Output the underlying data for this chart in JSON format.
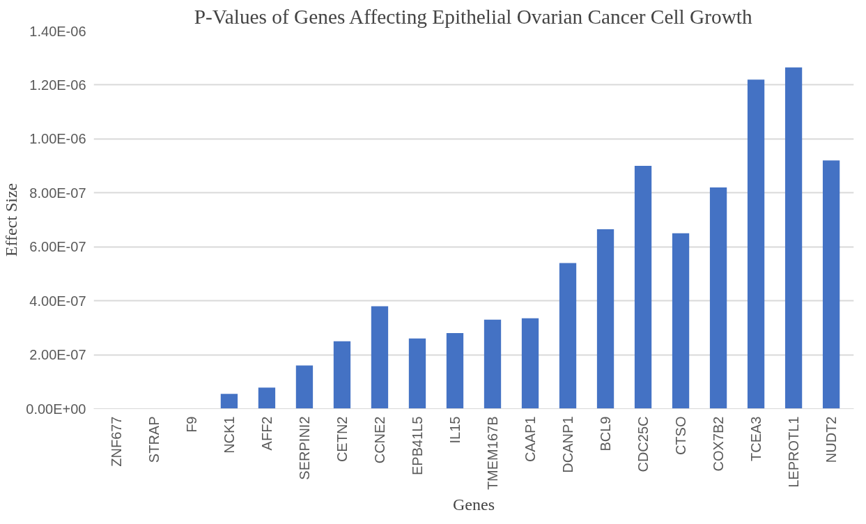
{
  "chart_data": {
    "type": "bar",
    "title": "P-Values of Genes Affecting Epithelial Ovarian Cancer Cell Growth",
    "xlabel": "Genes",
    "ylabel": "Effect Size",
    "categories": [
      "ZNF677",
      "STRAP",
      "F9",
      "NCK1",
      "AFF2",
      "SERPINI2",
      "CETN2",
      "CCNE2",
      "EPB41L5",
      "IL15",
      "TMEM167B",
      "CAAP1",
      "DCANP1",
      "BCL9",
      "CDC25C",
      "CTSO",
      "COX7B2",
      "TCEA3",
      "LEPROTL1",
      "NUDT2"
    ],
    "values": [
      0,
      0,
      0,
      5.5e-08,
      7.8e-08,
      1.6e-07,
      2.5e-07,
      3.8e-07,
      2.6e-07,
      2.8e-07,
      3.3e-07,
      3.35e-07,
      5.4e-07,
      6.65e-07,
      9e-07,
      6.5e-07,
      8.2e-07,
      1.22e-06,
      1.265e-06,
      9.2e-07
    ],
    "color": "#4472c4",
    "ylim": [
      0,
      1.4e-06
    ],
    "yticks": [
      {
        "value": 0,
        "label": "0.00E+00"
      },
      {
        "value": 2e-07,
        "label": "2.00E-07"
      },
      {
        "value": 4e-07,
        "label": "4.00E-07"
      },
      {
        "value": 6e-07,
        "label": "6.00E-07"
      },
      {
        "value": 8e-07,
        "label": "8.00E-07"
      },
      {
        "value": 1e-06,
        "label": "1.00E-06"
      },
      {
        "value": 1.2e-06,
        "label": "1.20E-06"
      },
      {
        "value": 1.4e-06,
        "label": "1.40E-06"
      }
    ],
    "grid": "y"
  }
}
